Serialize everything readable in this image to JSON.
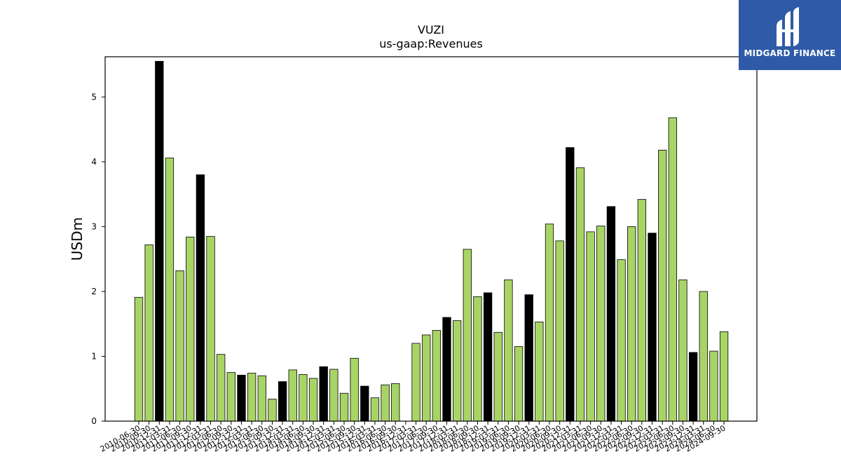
{
  "logo": {
    "text": "MIDGARD FINANCE"
  },
  "chart_data": {
    "type": "bar",
    "title": "VUZI",
    "subtitle": "us-gaap:Revenues",
    "xlabel": "",
    "ylabel": "USDm",
    "ylim": [
      0,
      5.62
    ],
    "yticks": [
      0,
      1,
      2,
      3,
      4,
      5
    ],
    "grid": false,
    "colors": {
      "default": "#a8d466",
      "highlight": "#000000",
      "edge": "#000000"
    },
    "categories": [
      "2010-06-30",
      "2010-09-30",
      "2010-12-31",
      "2011-03-31",
      "2011-06-30",
      "2011-09-30",
      "2011-12-31",
      "2012-03-31",
      "2012-06-30",
      "2012-09-30",
      "2012-12-31",
      "2013-03-31",
      "2013-06-30",
      "2013-09-30",
      "2013-12-31",
      "2014-03-31",
      "2014-06-30",
      "2014-09-30",
      "2014-12-31",
      "2015-03-31",
      "2015-06-30",
      "2015-09-30",
      "2015-12-31",
      "2016-03-31",
      "2016-06-30",
      "2016-09-30",
      "2016-12-31",
      "2017-03-31",
      "2017-06-30",
      "2017-09-30",
      "2017-12-31",
      "2018-03-31",
      "2018-06-30",
      "2018-09-30",
      "2018-12-31",
      "2019-03-31",
      "2019-06-30",
      "2019-09-30",
      "2019-12-31",
      "2020-03-31",
      "2020-06-30",
      "2020-09-30",
      "2020-12-31",
      "2021-03-31",
      "2021-06-30",
      "2021-09-30",
      "2021-12-31",
      "2022-03-31",
      "2022-06-30",
      "2022-09-30",
      "2022-12-31",
      "2023-03-31",
      "2023-06-30",
      "2023-09-30",
      "2023-12-31",
      "2024-03-31",
      "2024-06-30",
      "2024-09-30"
    ],
    "series": [
      {
        "values": [
          1.91,
          2.72,
          5.55,
          4.06,
          2.32,
          2.84,
          3.8,
          2.85,
          1.03,
          0.75,
          0.71,
          0.74,
          0.7,
          0.34,
          0.61,
          0.79,
          0.72,
          0.66,
          0.84,
          0.8,
          0.43,
          0.97,
          0.54,
          0.36,
          0.56,
          0.58,
          0,
          1.2,
          1.33,
          1.4,
          1.6,
          1.55,
          2.65,
          1.92,
          1.98,
          1.37,
          2.18,
          1.15,
          1.95,
          1.53,
          3.04,
          2.78,
          4.22,
          3.91,
          2.92,
          3.01,
          3.31,
          2.49,
          3.0,
          3.42,
          2.9,
          4.18,
          4.68,
          2.18,
          1.06,
          2.0,
          1.08,
          1.38
        ],
        "highlight": [
          false,
          false,
          true,
          false,
          false,
          false,
          true,
          false,
          false,
          false,
          true,
          false,
          false,
          false,
          true,
          false,
          false,
          false,
          true,
          false,
          false,
          false,
          true,
          false,
          false,
          false,
          false,
          false,
          false,
          false,
          true,
          false,
          false,
          false,
          true,
          false,
          false,
          false,
          true,
          false,
          false,
          false,
          true,
          false,
          false,
          false,
          true,
          false,
          false,
          false,
          true,
          false,
          false,
          false,
          true,
          false,
          false,
          false
        ]
      }
    ]
  }
}
